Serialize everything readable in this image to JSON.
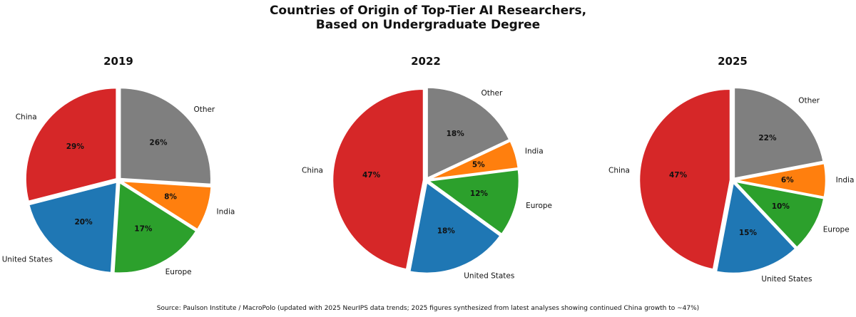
{
  "title": "Countries of Origin of Top-Tier AI Researchers,",
  "subtitle": "Based on Undergraduate Degree",
  "source": "Source: Paulson Institute / MacroPolo (updated with 2025 NeurIPS data trends; 2025 figures synthesized from latest analyses showing continued China growth to ~47%)",
  "colors": {
    "China": "#d62728",
    "United States": "#1f77b4",
    "Europe": "#2ca02c",
    "India": "#ff7f0e",
    "Other": "#7f7f7f"
  },
  "chart_data": [
    {
      "type": "pie",
      "title": "2019",
      "start_angle_deg": 90,
      "direction": "clockwise",
      "exploded": true,
      "slices": [
        {
          "label": "Other",
          "value": 26,
          "pct_label": "26%",
          "color": "#7f7f7f"
        },
        {
          "label": "India",
          "value": 8,
          "pct_label": "8%",
          "color": "#ff7f0e"
        },
        {
          "label": "Europe",
          "value": 17,
          "pct_label": "17%",
          "color": "#2ca02c"
        },
        {
          "label": "United States",
          "value": 20,
          "pct_label": "20%",
          "color": "#1f77b4"
        },
        {
          "label": "China",
          "value": 29,
          "pct_label": "29%",
          "color": "#d62728"
        }
      ]
    },
    {
      "type": "pie",
      "title": "2022",
      "start_angle_deg": 90,
      "direction": "clockwise",
      "exploded": true,
      "slices": [
        {
          "label": "Other",
          "value": 18,
          "pct_label": "18%",
          "color": "#7f7f7f"
        },
        {
          "label": "India",
          "value": 5,
          "pct_label": "5%",
          "color": "#ff7f0e"
        },
        {
          "label": "Europe",
          "value": 12,
          "pct_label": "12%",
          "color": "#2ca02c"
        },
        {
          "label": "United States",
          "value": 18,
          "pct_label": "18%",
          "color": "#1f77b4"
        },
        {
          "label": "China",
          "value": 47,
          "pct_label": "47%",
          "color": "#d62728"
        }
      ]
    },
    {
      "type": "pie",
      "title": "2025",
      "start_angle_deg": 90,
      "direction": "clockwise",
      "exploded": true,
      "slices": [
        {
          "label": "Other",
          "value": 22,
          "pct_label": "22%",
          "color": "#7f7f7f"
        },
        {
          "label": "India",
          "value": 6,
          "pct_label": "6%",
          "color": "#ff7f0e"
        },
        {
          "label": "Europe",
          "value": 10,
          "pct_label": "10%",
          "color": "#2ca02c"
        },
        {
          "label": "United States",
          "value": 15,
          "pct_label": "15%",
          "color": "#1f77b4"
        },
        {
          "label": "China",
          "value": 47,
          "pct_label": "47%",
          "color": "#d62728"
        }
      ]
    }
  ]
}
